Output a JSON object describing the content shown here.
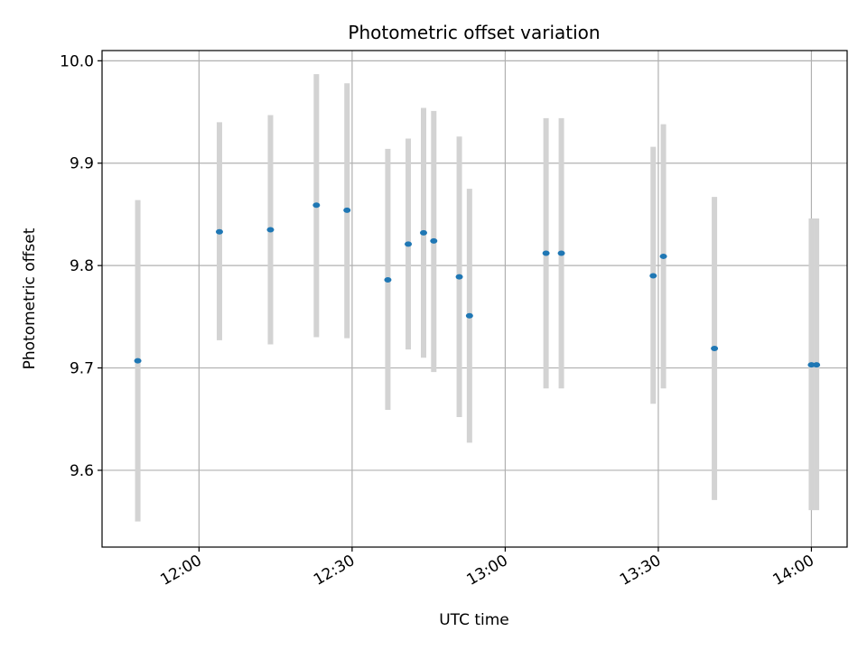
{
  "chart_data": {
    "type": "scatter",
    "title": "Photometric offset variation",
    "xlabel": "UTC time",
    "ylabel": "Photometric offset",
    "x_axis_kind": "time",
    "xlim": [
      "11:41",
      "14:07"
    ],
    "ylim": [
      9.525,
      10.01
    ],
    "grid": true,
    "x_ticks": [
      "12:00",
      "12:30",
      "13:00",
      "13:30",
      "14:00"
    ],
    "y_ticks": [
      "9.6",
      "9.7",
      "9.8",
      "9.9",
      "10.0"
    ],
    "point_color": "#1f77b4",
    "errorbar_color": "#d3d3d3",
    "points": [
      {
        "x": "11:48",
        "y": 9.707,
        "low": 9.55,
        "high": 9.864
      },
      {
        "x": "12:04",
        "y": 9.833,
        "low": 9.727,
        "high": 9.94
      },
      {
        "x": "12:14",
        "y": 9.835,
        "low": 9.723,
        "high": 9.947
      },
      {
        "x": "12:23",
        "y": 9.859,
        "low": 9.73,
        "high": 9.987
      },
      {
        "x": "12:29",
        "y": 9.854,
        "low": 9.729,
        "high": 9.978
      },
      {
        "x": "12:37",
        "y": 9.786,
        "low": 9.659,
        "high": 9.914
      },
      {
        "x": "12:41",
        "y": 9.821,
        "low": 9.718,
        "high": 9.924
      },
      {
        "x": "12:44",
        "y": 9.832,
        "low": 9.71,
        "high": 9.954
      },
      {
        "x": "12:46",
        "y": 9.824,
        "low": 9.696,
        "high": 9.951
      },
      {
        "x": "12:51",
        "y": 9.789,
        "low": 9.652,
        "high": 9.926
      },
      {
        "x": "12:53",
        "y": 9.751,
        "low": 9.627,
        "high": 9.875
      },
      {
        "x": "13:08",
        "y": 9.812,
        "low": 9.68,
        "high": 9.944
      },
      {
        "x": "13:11",
        "y": 9.812,
        "low": 9.68,
        "high": 9.944
      },
      {
        "x": "13:29",
        "y": 9.79,
        "low": 9.665,
        "high": 9.916
      },
      {
        "x": "13:31",
        "y": 9.809,
        "low": 9.68,
        "high": 9.938
      },
      {
        "x": "13:41",
        "y": 9.719,
        "low": 9.571,
        "high": 9.867
      },
      {
        "x": "14:00",
        "y": 9.703,
        "low": 9.561,
        "high": 9.846
      },
      {
        "x": "14:01",
        "y": 9.703,
        "low": 9.561,
        "high": 9.846
      }
    ]
  }
}
